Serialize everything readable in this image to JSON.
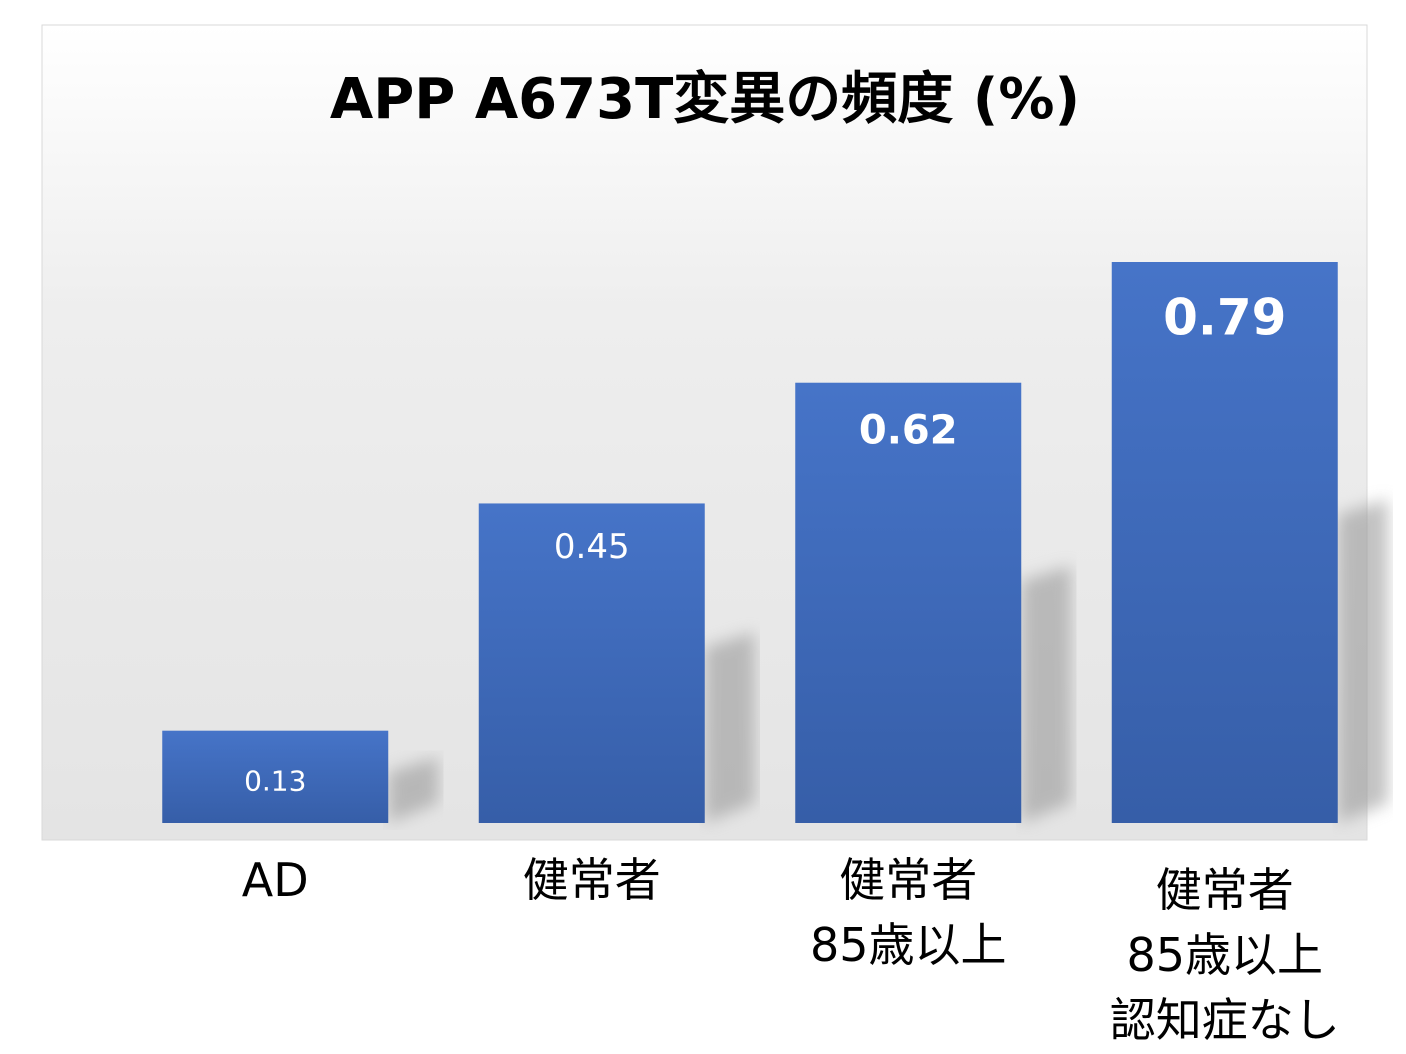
{
  "chart_data": {
    "type": "bar",
    "title": "APP A673T変異の頻度 (%)",
    "categories": [
      "AD",
      "健常者",
      "健常者\n85歳以上",
      "健常者\n85歳以上\n認知症なし"
    ],
    "values": [
      0.13,
      0.45,
      0.62,
      0.79
    ],
    "color": "#4472c4"
  }
}
